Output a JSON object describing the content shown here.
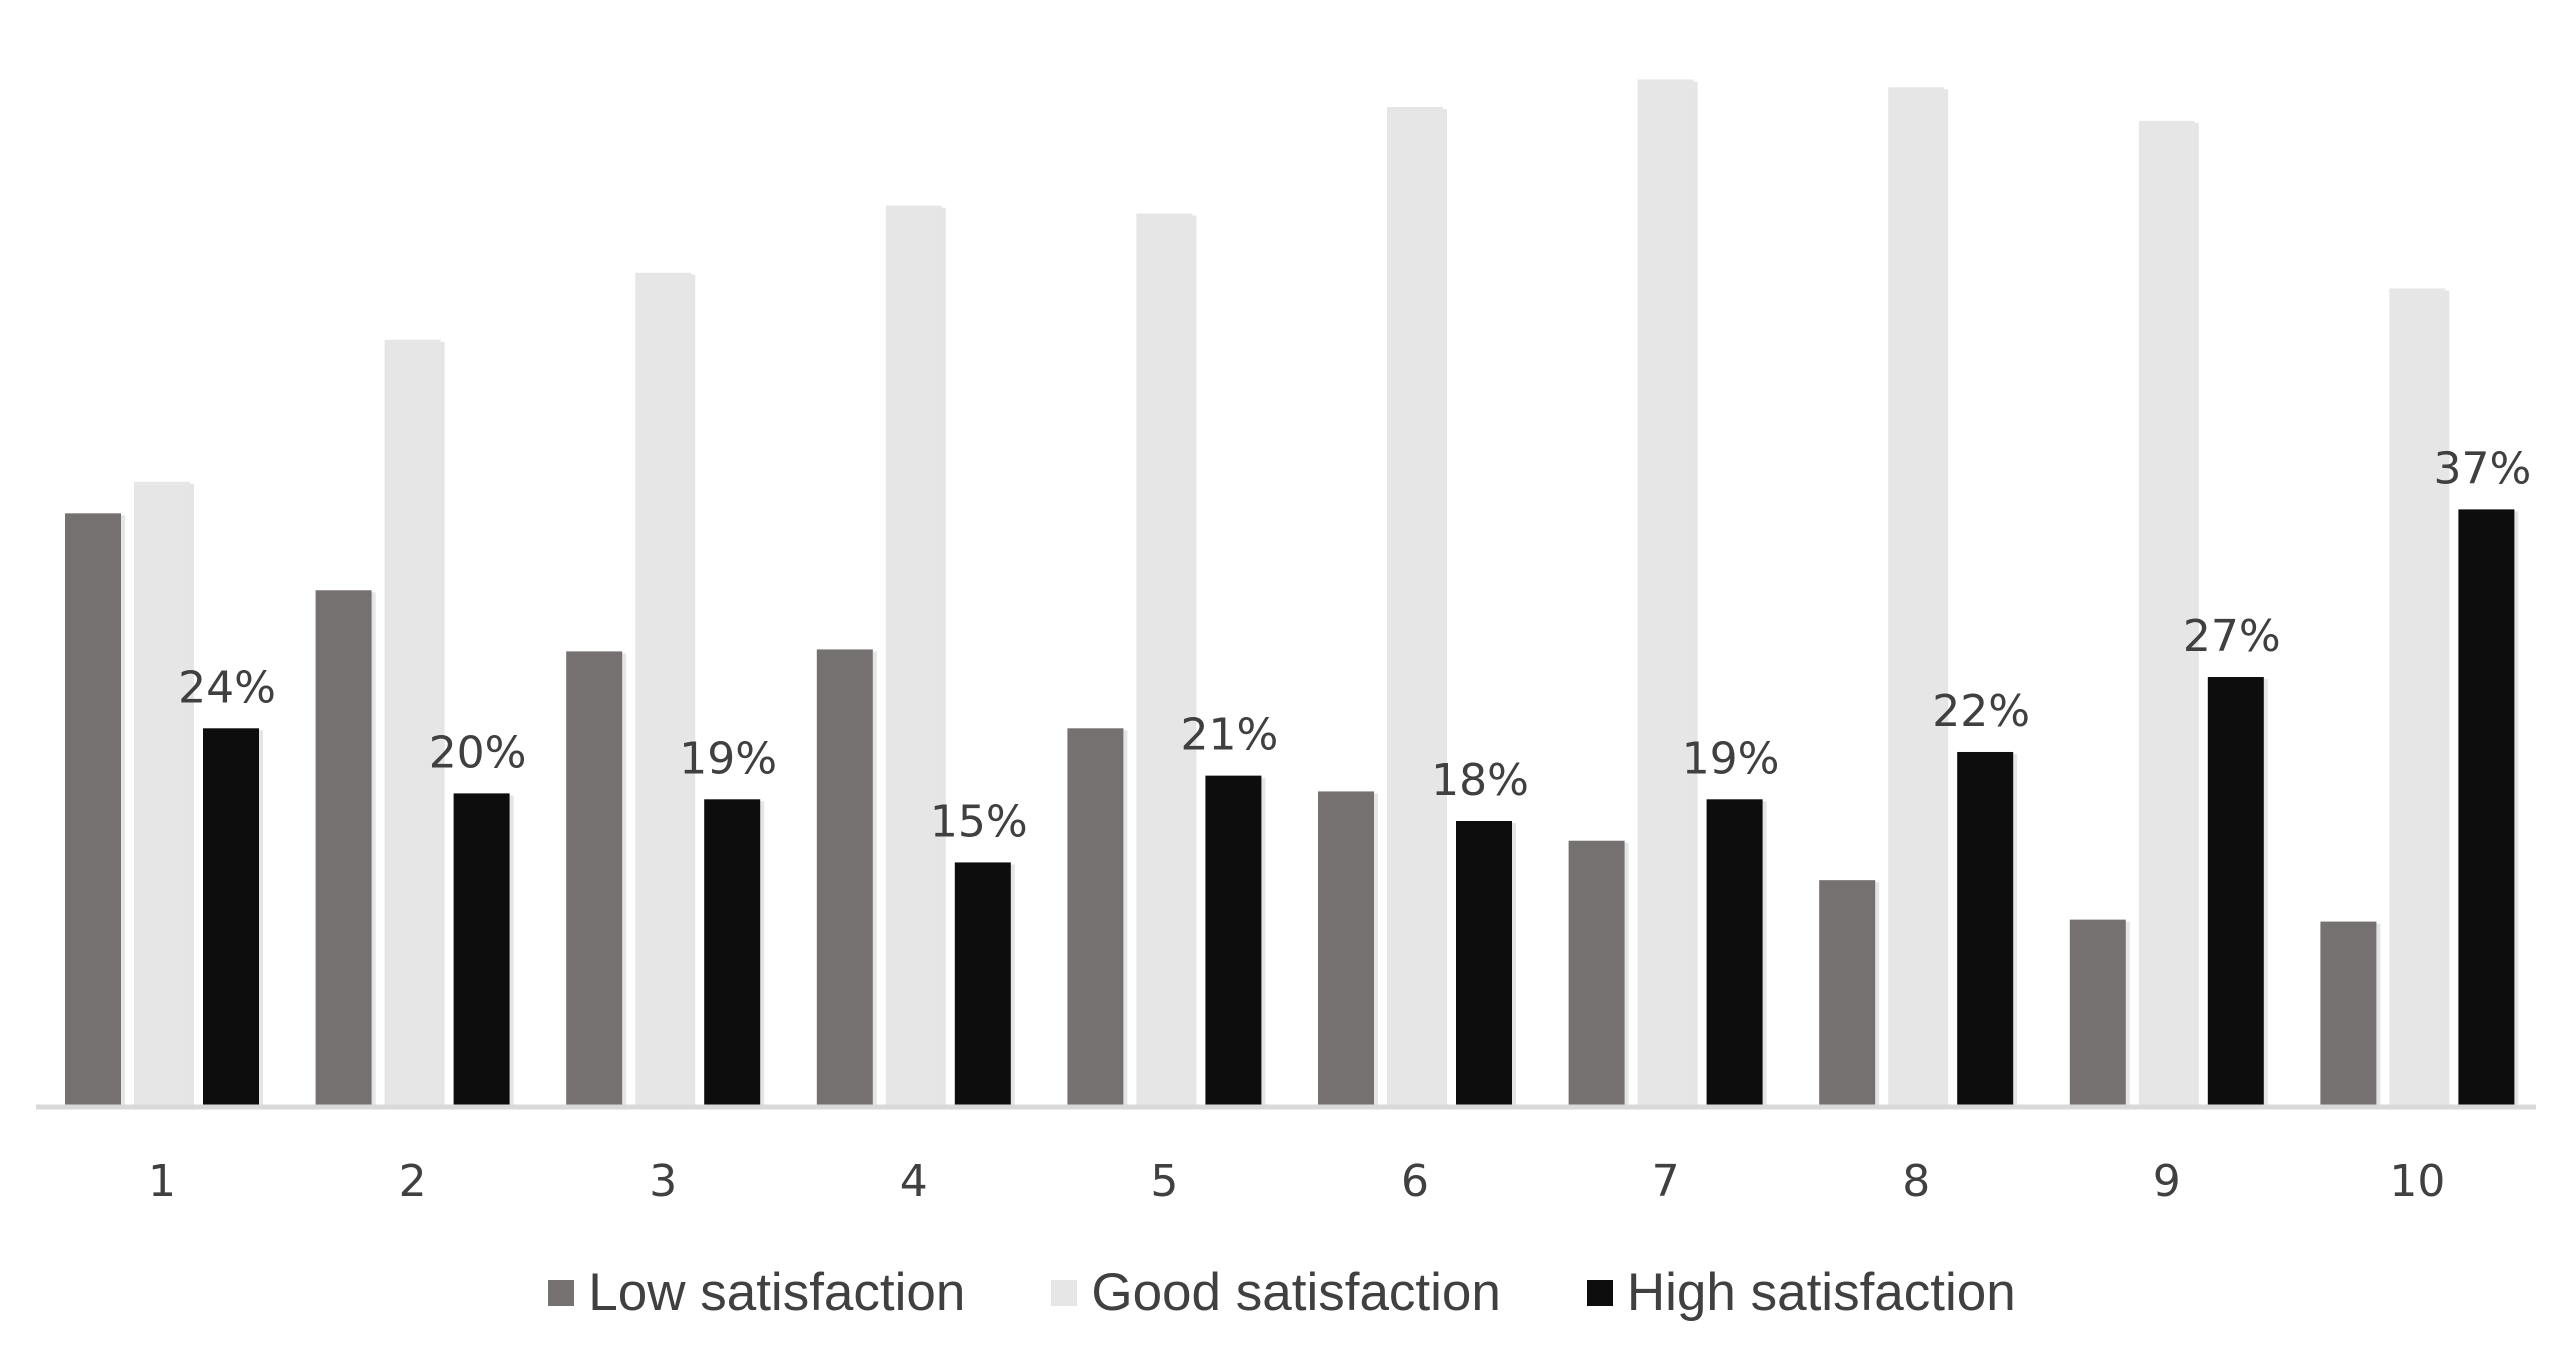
{
  "chart_data": {
    "type": "bar",
    "categories": [
      "1",
      "2",
      "3",
      "4",
      "5",
      "6",
      "7",
      "8",
      "9",
      "10"
    ],
    "series": [
      {
        "name": "Low satisfaction",
        "color": "#767171",
        "values": [
          30.0,
          26.1,
          23.0,
          23.1,
          19.1,
          15.9,
          13.4,
          11.4,
          9.4,
          9.3
        ]
      },
      {
        "name": "Good satisfaction",
        "color": "#e6e6e6",
        "values": [
          31.6,
          38.8,
          42.2,
          45.6,
          45.2,
          50.6,
          52.0,
          51.6,
          49.9,
          41.4
        ]
      },
      {
        "name": "High satisfaction",
        "color": "#0d0d0d",
        "values": [
          19.1,
          15.8,
          15.5,
          12.3,
          16.7,
          14.4,
          15.5,
          17.9,
          21.7,
          30.2
        ],
        "data_labels": [
          "24%",
          "20%",
          "19%",
          "15%",
          "21%",
          "18%",
          "19%",
          "22%",
          "27%",
          "37%"
        ]
      }
    ],
    "title": "",
    "xlabel": "",
    "ylabel": "",
    "ylim": [
      0,
      54
    ],
    "grid": false,
    "legend_position": "bottom-center"
  }
}
